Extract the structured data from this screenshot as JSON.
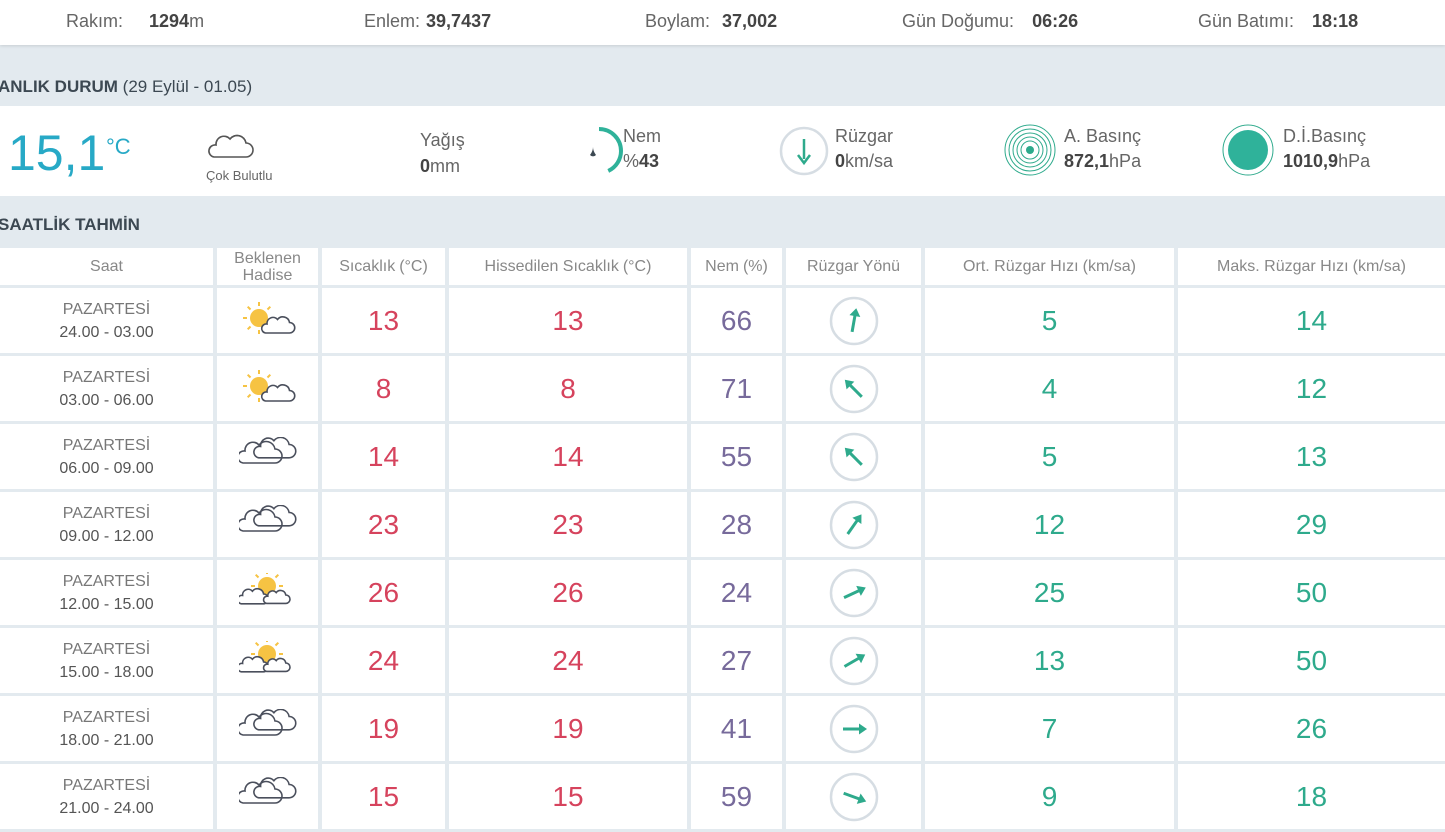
{
  "info_bar": [
    {
      "label": "Rakım:",
      "value": "1294",
      "unit": "m"
    },
    {
      "label": "Enlem:",
      "value": "39,7437"
    },
    {
      "label": "Boylam:",
      "value": "37,002"
    },
    {
      "label": "Gün Doğumu:",
      "value": "06:26"
    },
    {
      "label": "Gün Batımı:",
      "value": "18:18"
    }
  ],
  "current": {
    "title": "ANLIK DURUM",
    "date": "(29 Eylül - 01.05)",
    "temperature": "15,1",
    "temperature_unit": "°C",
    "condition": "Çok Bulutlu",
    "precipitation": {
      "label": "Yağış",
      "value": 0,
      "unit": "mm"
    },
    "humidity": {
      "label": "Nem",
      "prefix": "%",
      "value": 43
    },
    "wind": {
      "label": "Rüzgar",
      "value": 0,
      "unit": "km/sa"
    },
    "pressure": {
      "label": "A. Basınç",
      "value": "872,1",
      "unit": "hPa"
    },
    "sea_pressure": {
      "label": "D.İ.Basınç",
      "value": "1010,9",
      "unit": "hPa"
    }
  },
  "hourly": {
    "title": "SAATLİK TAHMİN",
    "columns": [
      {
        "name": "Saat"
      },
      {
        "name": "Beklenen Hadise"
      },
      {
        "name": "Sıcaklık",
        "unit": "(°C)"
      },
      {
        "name": "Hissedilen Sıcaklık",
        "unit": "(°C)"
      },
      {
        "name": "Nem",
        "unit": "(%)"
      },
      {
        "name": "Rüzgar Yönü"
      },
      {
        "name": "Ort. Rüzgar Hızı",
        "unit": "(km/sa)"
      },
      {
        "name": "Maks. Rüzgar Hızı",
        "unit": "(km/sa)"
      }
    ],
    "rows": [
      {
        "day": "PAZARTESİ",
        "time": "24.00 - 03.00",
        "icon": "partly-sunny",
        "temperature": 13,
        "feels_like": 13,
        "humidity": 66,
        "wind_direction": 10,
        "wind_avg": 5,
        "wind_max": 14
      },
      {
        "day": "PAZARTESİ",
        "time": "03.00 - 06.00",
        "icon": "partly-sunny",
        "temperature": 8,
        "feels_like": 8,
        "humidity": 71,
        "wind_direction": 315,
        "wind_avg": 4,
        "wind_max": 12
      },
      {
        "day": "PAZARTESİ",
        "time": "06.00 - 09.00",
        "icon": "cloudy",
        "temperature": 14,
        "feels_like": 14,
        "humidity": 55,
        "wind_direction": 315,
        "wind_avg": 5,
        "wind_max": 13
      },
      {
        "day": "PAZARTESİ",
        "time": "09.00 - 12.00",
        "icon": "cloudy",
        "temperature": 23,
        "feels_like": 23,
        "humidity": 28,
        "wind_direction": 35,
        "wind_avg": 12,
        "wind_max": 29
      },
      {
        "day": "PAZARTESİ",
        "time": "12.00 - 15.00",
        "icon": "sun-clouds",
        "temperature": 26,
        "feels_like": 26,
        "humidity": 24,
        "wind_direction": 65,
        "wind_avg": 25,
        "wind_max": 50
      },
      {
        "day": "PAZARTESİ",
        "time": "15.00 - 18.00",
        "icon": "sun-clouds",
        "temperature": 24,
        "feels_like": 24,
        "humidity": 27,
        "wind_direction": 60,
        "wind_avg": 13,
        "wind_max": 50
      },
      {
        "day": "PAZARTESİ",
        "time": "18.00 - 21.00",
        "icon": "cloudy",
        "temperature": 19,
        "feels_like": 19,
        "humidity": 41,
        "wind_direction": 90,
        "wind_avg": 7,
        "wind_max": 26
      },
      {
        "day": "PAZARTESİ",
        "time": "21.00 - 24.00",
        "icon": "cloudy",
        "temperature": 15,
        "feels_like": 15,
        "humidity": 59,
        "wind_direction": 110,
        "wind_avg": 9,
        "wind_max": 18
      }
    ]
  }
}
